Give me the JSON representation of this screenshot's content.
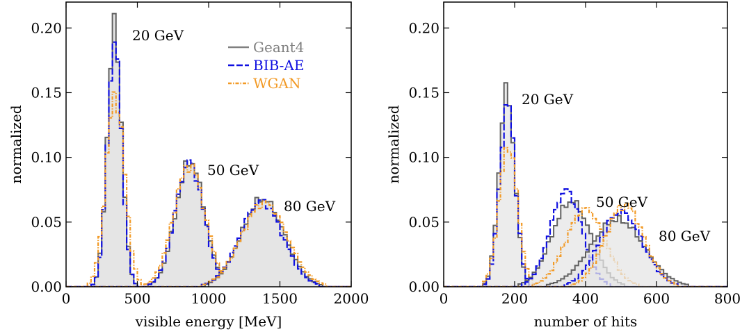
{
  "chart_data": [
    {
      "type": "histogram",
      "xlabel": "visible energy [MeV]",
      "ylabel": "normalized",
      "xlim": [
        0,
        2000
      ],
      "ylim": [
        0,
        0.22
      ],
      "xticks": [
        0,
        500,
        1000,
        1500,
        2000
      ],
      "xtick_labels": [
        "0",
        "500",
        "1000",
        "1500",
        "2000"
      ],
      "yticks": [
        0.0,
        0.05,
        0.1,
        0.15,
        0.2
      ],
      "ytick_labels": [
        "0.00",
        "0.05",
        "0.10",
        "0.15",
        "0.20"
      ],
      "grid": false,
      "legend": {
        "placement": "top-center",
        "entries": [
          {
            "label": "Geant4",
            "color": "#808080"
          },
          {
            "label": "BIB-AE",
            "color": "#1010e0"
          },
          {
            "label": "WGAN",
            "color": "#f29a26"
          }
        ]
      },
      "annotations": [
        "20 GeV",
        "50 GeV",
        "80 GeV"
      ],
      "peaks": [
        {
          "energy": "20 GeV",
          "geant4": {
            "mean": 340,
            "sigma": 50,
            "peak": 0.2
          },
          "bibae": {
            "mean": 340,
            "sigma": 50,
            "peak": 0.19
          },
          "wgan": {
            "mean": 345,
            "sigma": 65,
            "peak": 0.148
          }
        },
        {
          "energy": "50 GeV",
          "geant4": {
            "mean": 870,
            "sigma": 100,
            "peak": 0.097
          },
          "bibae": {
            "mean": 865,
            "sigma": 100,
            "peak": 0.096
          },
          "wgan": {
            "mean": 865,
            "sigma": 110,
            "peak": 0.094
          }
        },
        {
          "energy": "80 GeV",
          "geant4": {
            "mean": 1380,
            "sigma": 150,
            "peak": 0.068
          },
          "bibae": {
            "mean": 1370,
            "sigma": 150,
            "peak": 0.066
          },
          "wgan": {
            "mean": 1390,
            "sigma": 160,
            "peak": 0.065
          }
        }
      ]
    },
    {
      "type": "histogram",
      "xlabel": "number of hits",
      "ylabel": "normalized",
      "xlim": [
        0,
        800
      ],
      "ylim": [
        0,
        0.22
      ],
      "xticks": [
        0,
        200,
        400,
        600,
        800
      ],
      "xtick_labels": [
        "0",
        "200",
        "400",
        "600",
        "800"
      ],
      "yticks": [
        0.0,
        0.05,
        0.1,
        0.15,
        0.2
      ],
      "ytick_labels": [
        "0.00",
        "0.05",
        "0.10",
        "0.15",
        "0.20"
      ],
      "grid": false,
      "annotations": [
        "20 GeV",
        "50 GeV",
        "80 GeV"
      ],
      "peaks": [
        {
          "energy": "20 GeV",
          "geant4": {
            "mean": 178,
            "sigma": 22,
            "peak": 0.152
          },
          "bibae": {
            "mean": 180,
            "sigma": 22,
            "peak": 0.142
          },
          "wgan": {
            "mean": 182,
            "sigma": 26,
            "peak": 0.11
          }
        },
        {
          "energy": "50 GeV",
          "geant4": {
            "mean": 360,
            "sigma": 55,
            "peak": 0.066
          },
          "bibae": {
            "mean": 345,
            "sigma": 45,
            "peak": 0.074
          },
          "wgan": {
            "mean": 400,
            "sigma": 55,
            "peak": 0.06
          }
        },
        {
          "energy": "80 GeV",
          "geant4": {
            "mean": 490,
            "sigma": 75,
            "peak": 0.052
          },
          "bibae": {
            "mean": 500,
            "sigma": 60,
            "peak": 0.058
          },
          "wgan": {
            "mean": 510,
            "sigma": 55,
            "peak": 0.063
          }
        }
      ]
    }
  ],
  "style": {
    "geant4_line": "#606060",
    "geant4_fill": "#e5e5e5",
    "bibae": "#1010e0",
    "wgan": "#f29a26",
    "overlap_fill": "#c9c9c9"
  }
}
